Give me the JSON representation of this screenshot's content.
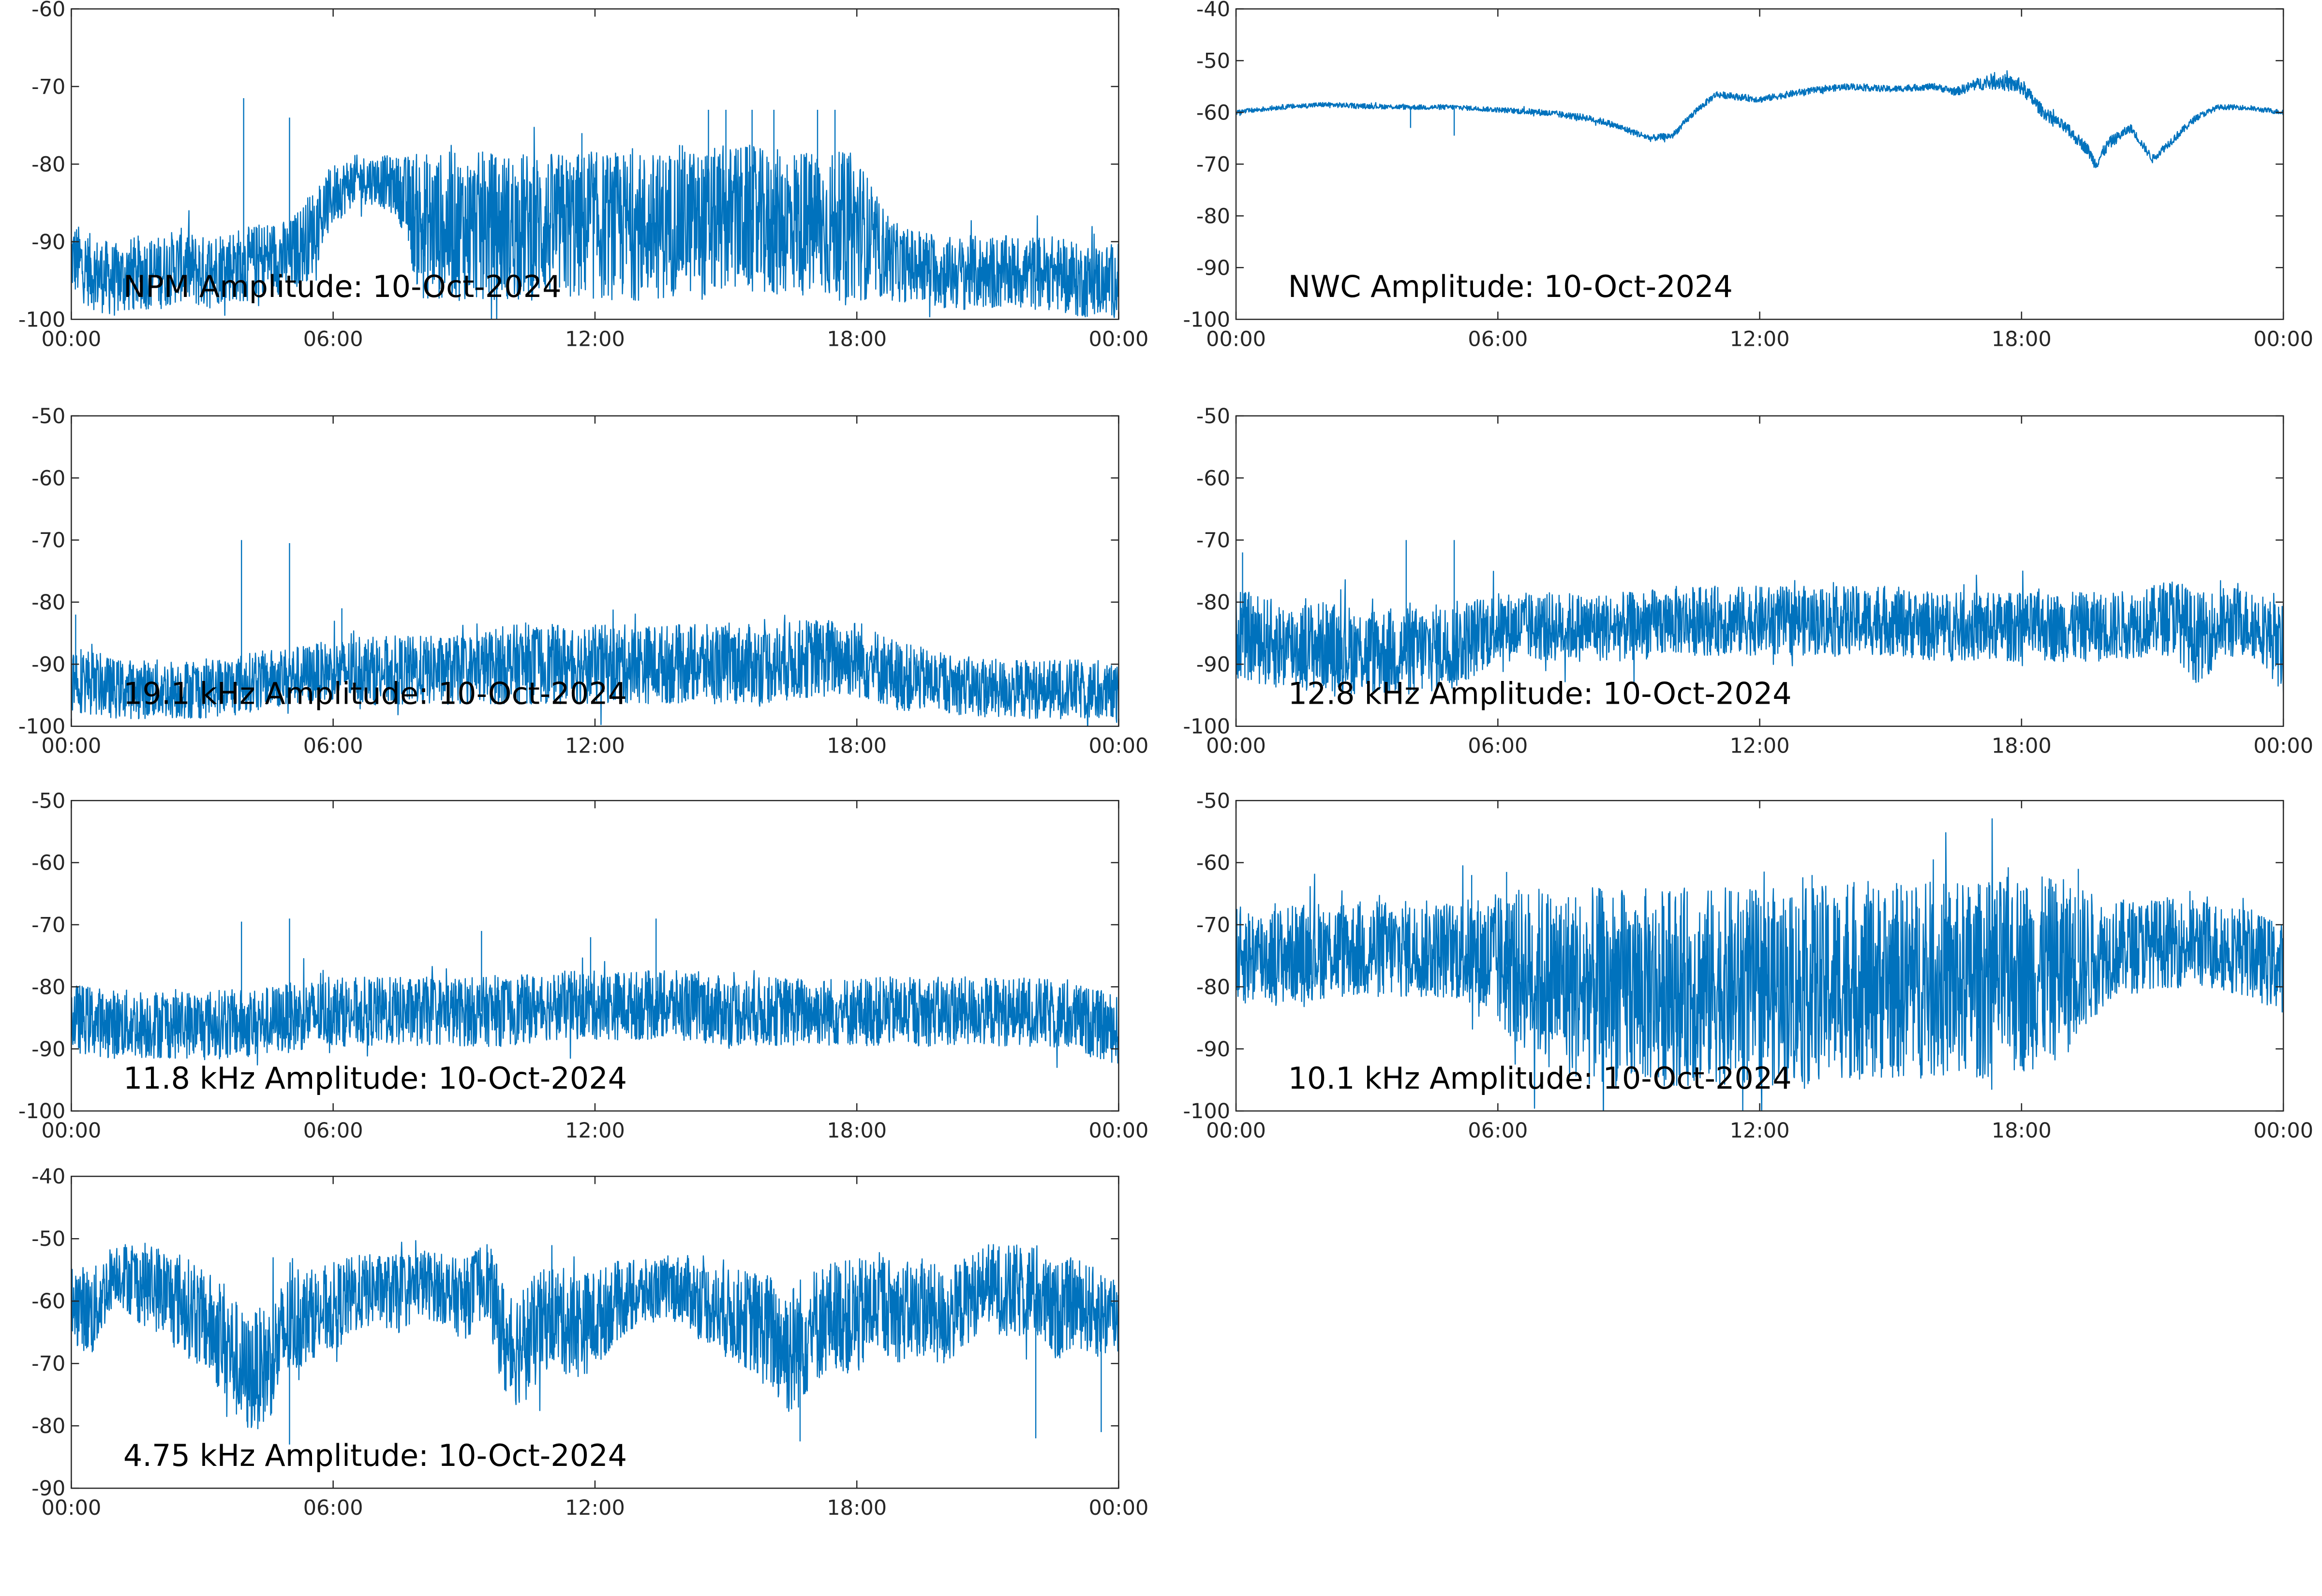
{
  "chart_data": [
    {
      "type": "line",
      "title": "NPM Amplitude: 10-Oct-2024",
      "x_tick_labels": [
        "00:00",
        "06:00",
        "12:00",
        "18:00",
        "00:00"
      ],
      "y_tick_labels": [
        "-60",
        "-70",
        "-80",
        "-90",
        "-100"
      ],
      "ylim": [
        -100,
        -60
      ],
      "xlim_hours": [
        0,
        24
      ],
      "color": "#0072BD",
      "series": [
        {
          "x": [
            0,
            0.5,
            1,
            1.5,
            2,
            2.5,
            3,
            3.5,
            4,
            4.5,
            5,
            5.5,
            6,
            6.5,
            7,
            7.5,
            8,
            8.5,
            9,
            9.5,
            10,
            10.5,
            11,
            11.5,
            12,
            12.5,
            13,
            13.5,
            14,
            14.5,
            15,
            15.5,
            16,
            16.5,
            17,
            17.5,
            18,
            18.5,
            19,
            19.5,
            20,
            20.5,
            21,
            21.5,
            22,
            22.5,
            23,
            23.5,
            24
          ],
          "y": [
            -92,
            -94,
            -95,
            -94,
            -94,
            -93,
            -94,
            -93,
            -93,
            -92,
            -92,
            -89,
            -84,
            -82,
            -82,
            -83,
            -88,
            -88,
            -88,
            -88,
            -88,
            -88,
            -88,
            -88,
            -88,
            -88,
            -88,
            -88,
            -87,
            -88,
            -87,
            -87,
            -88,
            -87,
            -88,
            -88,
            -88,
            -91,
            -93,
            -93,
            -94,
            -94,
            -94,
            -94,
            -94,
            -94,
            -95,
            -95,
            -95
          ],
          "spread": [
            6,
            6,
            6,
            6,
            6,
            6,
            6,
            6,
            6,
            6,
            6,
            7,
            5,
            4,
            4,
            5,
            12,
            12,
            12,
            12,
            12,
            12,
            12,
            12,
            12,
            12,
            12,
            12,
            12,
            12,
            12,
            12,
            12,
            12,
            12,
            12,
            12,
            8,
            6,
            6,
            6,
            6,
            6,
            6,
            6,
            6,
            6,
            6,
            6
          ]
        }
      ],
      "spikes": [
        {
          "x": 3.95,
          "y": -71.5
        },
        {
          "x": 5.0,
          "y": -74
        },
        {
          "x": 11.7,
          "y": -76
        },
        {
          "x": 14.6,
          "y": -73
        },
        {
          "x": 15.0,
          "y": -73
        },
        {
          "x": 15.6,
          "y": -73
        },
        {
          "x": 16.1,
          "y": -73
        },
        {
          "x": 17.1,
          "y": -73
        },
        {
          "x": 17.5,
          "y": -73
        }
      ]
    },
    {
      "type": "line",
      "title": "NWC Amplitude: 10-Oct-2024",
      "x_tick_labels": [
        "00:00",
        "06:00",
        "12:00",
        "18:00",
        "00:00"
      ],
      "y_tick_labels": [
        "-40",
        "-50",
        "-60",
        "-70",
        "-80",
        "-90",
        "-100"
      ],
      "ylim": [
        -100,
        -40
      ],
      "xlim_hours": [
        0,
        24
      ],
      "color": "#0072BD",
      "series": [
        {
          "x": [
            0,
            1,
            2,
            3,
            4,
            5,
            6,
            7,
            8,
            8.5,
            9,
            9.5,
            10,
            10.5,
            11,
            12,
            13,
            14,
            15,
            16,
            16.5,
            17,
            17.5,
            18,
            18.5,
            19,
            19.5,
            19.7,
            20,
            20.5,
            21,
            21.5,
            22,
            22.5,
            23,
            24
          ],
          "y": [
            -60,
            -59,
            -58.5,
            -58.8,
            -59,
            -59,
            -59.5,
            -60,
            -61,
            -62,
            -63.5,
            -65,
            -64.5,
            -60,
            -56.5,
            -57.5,
            -56,
            -55,
            -55.5,
            -55,
            -56,
            -54.5,
            -54,
            -55,
            -60,
            -63,
            -67,
            -70,
            -66,
            -63,
            -69,
            -65,
            -61,
            -59,
            -59,
            -60
          ],
          "spread": [
            0.6,
            0.6,
            0.6,
            0.6,
            0.6,
            0.6,
            0.6,
            0.8,
            0.8,
            0.8,
            0.8,
            0.8,
            0.8,
            0.8,
            0.8,
            0.8,
            0.8,
            0.8,
            0.8,
            0.8,
            1,
            1.5,
            2,
            2,
            1.5,
            1.5,
            1.5,
            1.5,
            1.5,
            1,
            1,
            1,
            0.8,
            0.6,
            0.6,
            0.6
          ]
        }
      ],
      "spikes": [
        {
          "x": 4.0,
          "y": -63
        },
        {
          "x": 5.0,
          "y": -64.5
        },
        {
          "x": 17.3,
          "y": -52.5
        }
      ]
    },
    {
      "type": "line",
      "title": "19.1 kHz Amplitude: 10-Oct-2024",
      "x_tick_labels": [
        "00:00",
        "06:00",
        "12:00",
        "18:00",
        "00:00"
      ],
      "y_tick_labels": [
        "-50",
        "-60",
        "-70",
        "-80",
        "-90",
        "-100"
      ],
      "ylim": [
        -100,
        -50
      ],
      "xlim_hours": [
        0,
        24
      ],
      "color": "#0072BD",
      "series": [
        {
          "x": [
            0,
            1,
            2,
            3,
            4,
            5,
            6,
            7,
            8,
            9,
            10,
            11,
            12,
            13,
            14,
            15,
            16,
            17,
            18,
            19,
            20,
            21,
            22,
            23,
            24
          ],
          "y": [
            -92,
            -94,
            -94,
            -94,
            -93,
            -92,
            -91,
            -91,
            -91,
            -91,
            -90,
            -90,
            -90,
            -90,
            -90,
            -90,
            -90,
            -89,
            -89,
            -92,
            -93,
            -94,
            -94,
            -94,
            -95
          ],
          "spread": [
            7,
            6,
            6,
            6,
            6,
            6,
            6,
            7,
            7,
            7,
            8,
            8,
            8,
            8,
            8,
            8,
            8,
            8,
            8,
            7,
            6,
            6,
            6,
            6,
            6
          ]
        }
      ],
      "spikes": [
        {
          "x": 0.1,
          "y": -82
        },
        {
          "x": 3.9,
          "y": -70
        },
        {
          "x": 5.0,
          "y": -70.5
        },
        {
          "x": 6.2,
          "y": -81
        }
      ]
    },
    {
      "type": "line",
      "title": "12.8 kHz Amplitude: 10-Oct-2024",
      "x_tick_labels": [
        "00:00",
        "06:00",
        "12:00",
        "18:00",
        "00:00"
      ],
      "y_tick_labels": [
        "-50",
        "-60",
        "-70",
        "-80",
        "-90",
        "-100"
      ],
      "ylim": [
        -100,
        -50
      ],
      "xlim_hours": [
        0,
        24
      ],
      "color": "#0072BD",
      "series": [
        {
          "x": [
            0,
            1,
            2,
            3,
            4,
            5,
            6,
            7,
            8,
            9,
            10,
            11,
            12,
            13,
            14,
            15,
            16,
            17,
            18,
            19,
            20,
            21,
            21.5,
            22,
            22.5,
            23,
            23.5,
            24
          ],
          "y": [
            -85,
            -87,
            -87,
            -88,
            -88,
            -87,
            -84,
            -84,
            -84,
            -84,
            -83,
            -83,
            -83,
            -83,
            -83,
            -83,
            -84,
            -84,
            -84,
            -84,
            -84,
            -83,
            -82,
            -86,
            -84,
            -83,
            -84,
            -88
          ],
          "spread": [
            9,
            9,
            9,
            9,
            9,
            9,
            7,
            7,
            7,
            7,
            7,
            7,
            7,
            7,
            7,
            7,
            7,
            7,
            7,
            7,
            7,
            7,
            8,
            9,
            8,
            7,
            7,
            9
          ]
        }
      ],
      "spikes": [
        {
          "x": 0.15,
          "y": -72
        },
        {
          "x": 3.9,
          "y": -70
        },
        {
          "x": 5.0,
          "y": -70
        }
      ]
    },
    {
      "type": "line",
      "title": "11.8 kHz Amplitude: 10-Oct-2024",
      "x_tick_labels": [
        "00:00",
        "06:00",
        "12:00",
        "18:00",
        "00:00"
      ],
      "y_tick_labels": [
        "-50",
        "-60",
        "-70",
        "-80",
        "-90",
        "-100"
      ],
      "ylim": [
        -100,
        -50
      ],
      "xlim_hours": [
        0,
        24
      ],
      "color": "#0072BD",
      "series": [
        {
          "x": [
            0,
            1,
            2,
            3,
            4,
            5,
            6,
            7,
            8,
            9,
            10,
            11,
            12,
            13,
            14,
            15,
            16,
            17,
            18,
            19,
            20,
            21,
            22,
            23,
            24
          ],
          "y": [
            -85,
            -86,
            -86,
            -86,
            -86,
            -85,
            -84,
            -84,
            -84,
            -84,
            -84,
            -83,
            -83,
            -83,
            -83,
            -84,
            -84,
            -84,
            -84,
            -84,
            -84,
            -84,
            -84,
            -85,
            -87
          ],
          "spread": [
            7,
            7,
            7,
            7,
            7,
            7,
            7,
            7,
            7,
            7,
            7,
            7,
            7,
            7,
            7,
            7,
            7,
            7,
            7,
            7,
            7,
            7,
            7,
            7,
            7
          ]
        }
      ],
      "spikes": [
        {
          "x": 3.9,
          "y": -69.5
        },
        {
          "x": 5.0,
          "y": -69
        },
        {
          "x": 9.4,
          "y": -71
        },
        {
          "x": 11.9,
          "y": -72
        },
        {
          "x": 13.4,
          "y": -69
        }
      ]
    },
    {
      "type": "line",
      "title": "10.1 kHz Amplitude: 10-Oct-2024",
      "x_tick_labels": [
        "00:00",
        "06:00",
        "12:00",
        "18:00",
        "00:00"
      ],
      "y_tick_labels": [
        "-50",
        "-60",
        "-70",
        "-80",
        "-90",
        "-100"
      ],
      "ylim": [
        -100,
        -50
      ],
      "xlim_hours": [
        0,
        24
      ],
      "color": "#0072BD",
      "series": [
        {
          "x": [
            0,
            1,
            2,
            3,
            4,
            5,
            6,
            7,
            8,
            9,
            10,
            11,
            12,
            13,
            14,
            15,
            16,
            17,
            18,
            19,
            20,
            21,
            22,
            23,
            24
          ],
          "y": [
            -75,
            -75,
            -74,
            -74,
            -74,
            -74,
            -76,
            -78,
            -80,
            -80,
            -80,
            -80,
            -80,
            -80,
            -79,
            -79,
            -79,
            -79,
            -78,
            -77,
            -74,
            -73,
            -73,
            -74,
            -77
          ],
          "spread": [
            10,
            10,
            10,
            10,
            10,
            10,
            14,
            18,
            20,
            20,
            20,
            20,
            20,
            20,
            20,
            20,
            20,
            20,
            20,
            18,
            10,
            9,
            9,
            9,
            9
          ]
        }
      ],
      "spikes": [
        {
          "x": 5.4,
          "y": -62
        },
        {
          "x": 6.2,
          "y": -61.5
        },
        {
          "x": 13.2,
          "y": -62
        },
        {
          "x": 19.3,
          "y": -61
        }
      ]
    },
    {
      "type": "line",
      "title": "4.75 kHz Amplitude: 10-Oct-2024",
      "x_tick_labels": [
        "00:00",
        "06:00",
        "12:00",
        "18:00",
        "00:00"
      ],
      "y_tick_labels": [
        "-40",
        "-50",
        "-60",
        "-70",
        "-80",
        "-90"
      ],
      "ylim": [
        -90,
        -40
      ],
      "xlim_hours": [
        0,
        24
      ],
      "color": "#0072BD",
      "series": [
        {
          "x": [
            0,
            0.5,
            1,
            1.5,
            2,
            2.5,
            3,
            3.5,
            4,
            4.5,
            5,
            5.5,
            6,
            6.5,
            7,
            7.5,
            8,
            8.5,
            9,
            9.5,
            10,
            10.5,
            11,
            11.5,
            12,
            12.5,
            13,
            13.5,
            14,
            14.5,
            15,
            15.5,
            16,
            16.5,
            17,
            17.5,
            18,
            18.5,
            19,
            19.5,
            20,
            20.5,
            21,
            21.5,
            22,
            22.5,
            23,
            23.5,
            24
          ],
          "y": [
            -60,
            -62,
            -55,
            -57,
            -58,
            -60,
            -63,
            -66,
            -72,
            -70,
            -64,
            -62,
            -61,
            -59,
            -58,
            -59,
            -57,
            -58,
            -60,
            -56,
            -68,
            -66,
            -62,
            -64,
            -63,
            -60,
            -59,
            -58,
            -58,
            -60,
            -62,
            -63,
            -65,
            -68,
            -64,
            -62,
            -63,
            -60,
            -62,
            -61,
            -63,
            -60,
            -57,
            -59,
            -58,
            -62,
            -60,
            -62,
            -62
          ],
          "spread": [
            8,
            9,
            6,
            8,
            9,
            10,
            10,
            12,
            12,
            12,
            11,
            9,
            9,
            8,
            7,
            8,
            7,
            7,
            8,
            8,
            12,
            12,
            10,
            11,
            10,
            8,
            7,
            6,
            7,
            8,
            9,
            10,
            12,
            14,
            12,
            11,
            12,
            10,
            10,
            10,
            10,
            9,
            8,
            10,
            9,
            10,
            9,
            9,
            9
          ]
        }
      ],
      "spikes": [
        {
          "x": 5.0,
          "y": -83
        },
        {
          "x": 16.7,
          "y": -82.5
        },
        {
          "x": 22.1,
          "y": -82
        },
        {
          "x": 23.6,
          "y": -81
        }
      ]
    }
  ]
}
